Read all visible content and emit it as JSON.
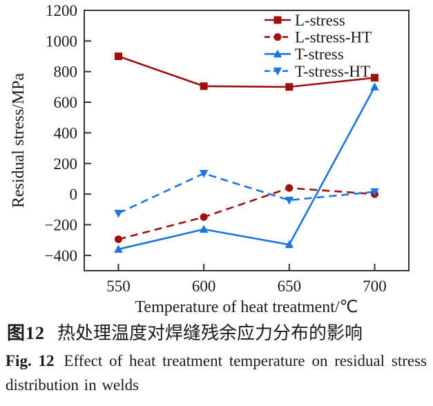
{
  "figure": {
    "caption_zh": {
      "label": "图12",
      "text": "热处理温度对焊缝残余应力分布的影响"
    },
    "caption_en": {
      "label": "Fig. 12",
      "text": "Effect of heat treatment temperature on residual stress distribution in welds"
    }
  },
  "chart_data": {
    "type": "line",
    "title": "",
    "xlabel": "Temperature of heat treatment/℃",
    "ylabel": "Residual stress/MPa",
    "x": [
      550,
      600,
      650,
      700
    ],
    "xlim": [
      530,
      720
    ],
    "ylim": [
      -500,
      1200
    ],
    "xticks": [
      550,
      600,
      650,
      700
    ],
    "yticks": [
      -400,
      -200,
      0,
      200,
      400,
      600,
      800,
      1000,
      1200
    ],
    "grid": false,
    "legend_position": "top-right-inside",
    "axis_color": "#333333",
    "text_color": "#1a1a1a",
    "series": [
      {
        "name": "L-stress",
        "values": [
          900,
          705,
          700,
          760
        ],
        "color": "#A00E0E",
        "line": "solid",
        "marker": "square"
      },
      {
        "name": "L-stress-HT",
        "values": [
          -295,
          -150,
          40,
          0
        ],
        "color": "#A00E0E",
        "line": "dashed",
        "marker": "circle"
      },
      {
        "name": "T-stress",
        "values": [
          -360,
          -230,
          -330,
          700
        ],
        "color": "#1A75E0",
        "line": "solid",
        "marker": "triangle-up"
      },
      {
        "name": "T-stress-HT",
        "values": [
          -125,
          135,
          -40,
          15
        ],
        "color": "#1A75E0",
        "line": "dashed",
        "marker": "triangle-down"
      }
    ]
  }
}
